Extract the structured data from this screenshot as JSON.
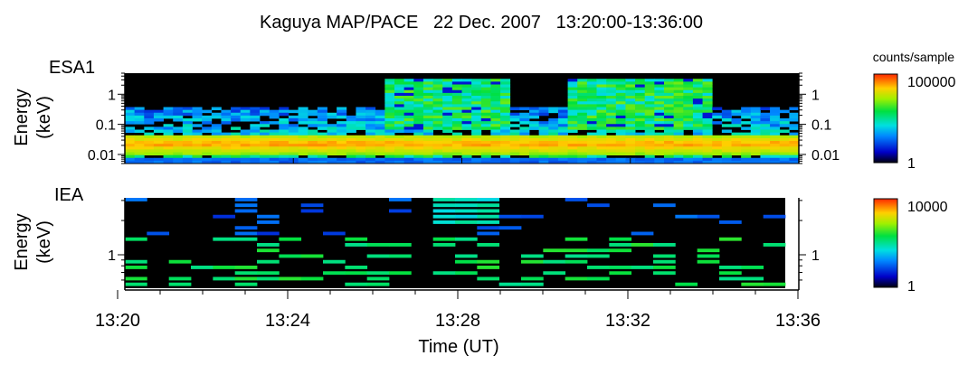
{
  "title": "Kaguya MAP/PACE   22 Dec. 2007   13:20:00-13:36:00",
  "x_axis": {
    "label": "Time (UT)",
    "ticks": [
      "13:20",
      "13:24",
      "13:28",
      "13:32",
      "13:36"
    ]
  },
  "colorbar_units": "counts/sample",
  "chart_data": [
    {
      "type": "heatmap",
      "panel": "ESA1",
      "ylabel_line1": "Energy",
      "ylabel_line2": "(keV)",
      "yscale": "log",
      "ylim": [
        0.005,
        5
      ],
      "yticks": [
        "0.01",
        "0.1",
        "1"
      ],
      "ytick_values": [
        0.01,
        0.1,
        1
      ],
      "right_yticks": [
        "0.01",
        "0.1",
        "1"
      ],
      "xlim": [
        "13:20",
        "13:36"
      ],
      "colorbar": {
        "min_label": "1",
        "max_label": "100000",
        "scale": "log"
      },
      "description_features": {
        "core_band_keV": [
          0.01,
          0.04
        ],
        "extended_high_energy_intervals": [
          [
            "13:26",
            "13:29"
          ],
          [
            "13:30:30",
            "13:34"
          ]
        ]
      }
    },
    {
      "type": "heatmap",
      "panel": "IEA",
      "ylabel_line1": "Energy",
      "ylabel_line2": "(keV)",
      "yscale": "log",
      "yticks": [
        "1"
      ],
      "ytick_values": [
        1
      ],
      "right_yticks": [
        "1"
      ],
      "xlim": [
        "13:20",
        "13:36"
      ],
      "colorbar": {
        "min_label": "1",
        "max_label": "10000",
        "scale": "log"
      }
    }
  ]
}
